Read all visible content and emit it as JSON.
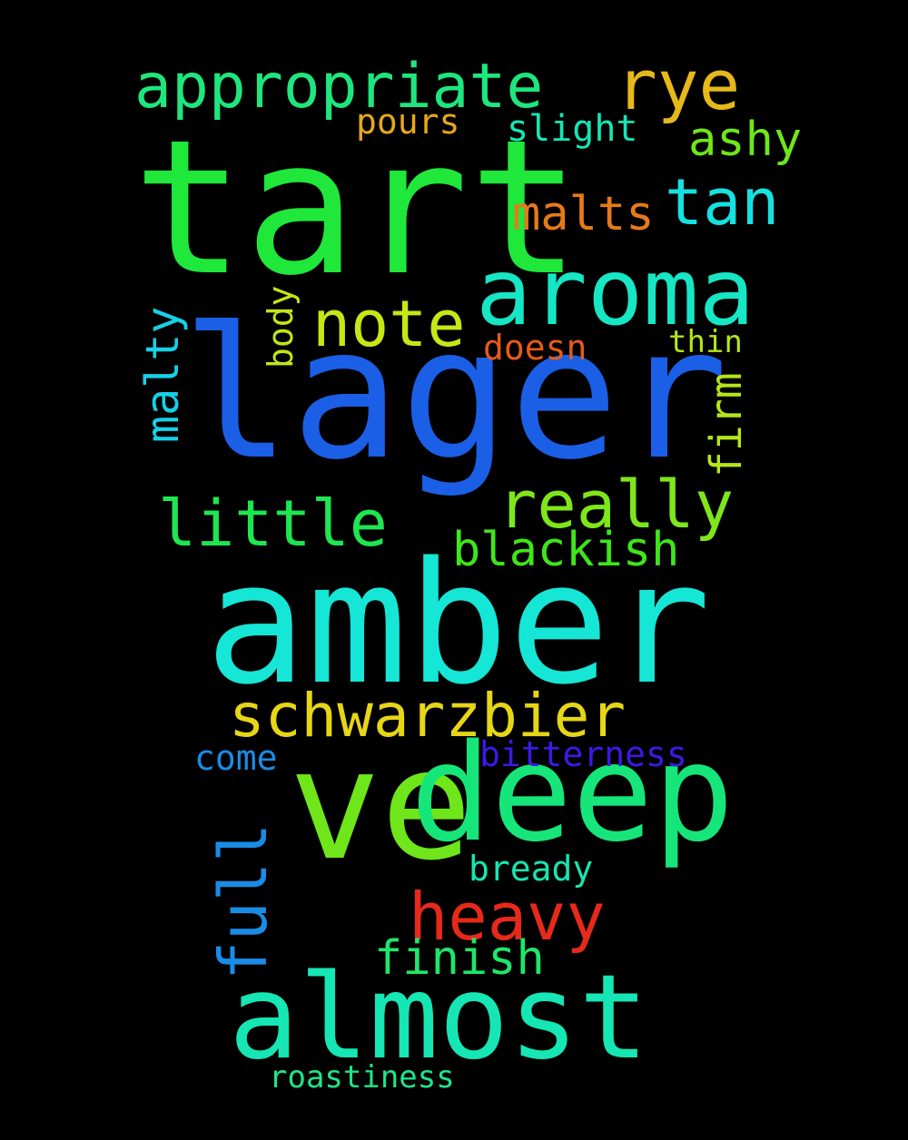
{
  "words": [
    {
      "id": "tart",
      "text": "tart",
      "color": "#1fe83a"
    },
    {
      "id": "lager",
      "text": "lager",
      "color": "#1a5fe6"
    },
    {
      "id": "amber",
      "text": "amber",
      "color": "#16e6d6"
    },
    {
      "id": "ve",
      "text": "ve",
      "color": "#6ee61a"
    },
    {
      "id": "deep",
      "text": "deep",
      "color": "#16e67a"
    },
    {
      "id": "almost",
      "text": "almost",
      "color": "#16e6b4"
    },
    {
      "id": "aroma",
      "text": "aroma",
      "color": "#16e6c4"
    },
    {
      "id": "appropriate",
      "text": "appropriate",
      "color": "#1ee67e"
    },
    {
      "id": "rye",
      "text": "rye",
      "color": "#e6b81a"
    },
    {
      "id": "schwarzbier",
      "text": "schwarzbier",
      "color": "#e6d616"
    },
    {
      "id": "heavy",
      "text": "heavy",
      "color": "#e62a1a"
    },
    {
      "id": "really",
      "text": "really",
      "color": "#7ee61a"
    },
    {
      "id": "little",
      "text": "little",
      "color": "#1ee650"
    },
    {
      "id": "note",
      "text": "note",
      "color": "#c8e616"
    },
    {
      "id": "tan",
      "text": "tan",
      "color": "#16e0e0"
    },
    {
      "id": "malts",
      "text": "malts",
      "color": "#e67a1a"
    },
    {
      "id": "blackish",
      "text": "blackish",
      "color": "#3ee61a"
    },
    {
      "id": "ashy",
      "text": "ashy",
      "color": "#6ee61a"
    },
    {
      "id": "finish",
      "text": "finish",
      "color": "#1ee66a"
    },
    {
      "id": "full",
      "text": "full",
      "color": "#1a8ce6"
    },
    {
      "id": "malty",
      "text": "malty",
      "color": "#16d0e6"
    },
    {
      "id": "firm",
      "text": "firm",
      "color": "#b4e61a"
    },
    {
      "id": "pours",
      "text": "pours",
      "color": "#e6a81a"
    },
    {
      "id": "slight",
      "text": "slight",
      "color": "#16e6b4"
    },
    {
      "id": "doesn",
      "text": "doesn",
      "color": "#e65a1a"
    },
    {
      "id": "thin",
      "text": "thin",
      "color": "#b4e61a"
    },
    {
      "id": "body",
      "text": "body",
      "color": "#c4e616"
    },
    {
      "id": "come",
      "text": "come",
      "color": "#1a8ce6"
    },
    {
      "id": "bitterness",
      "text": "bitterness",
      "color": "#3a1ae6"
    },
    {
      "id": "bready",
      "text": "bready",
      "color": "#16e6b0"
    },
    {
      "id": "roastiness",
      "text": "roastiness",
      "color": "#1ee68a"
    }
  ]
}
